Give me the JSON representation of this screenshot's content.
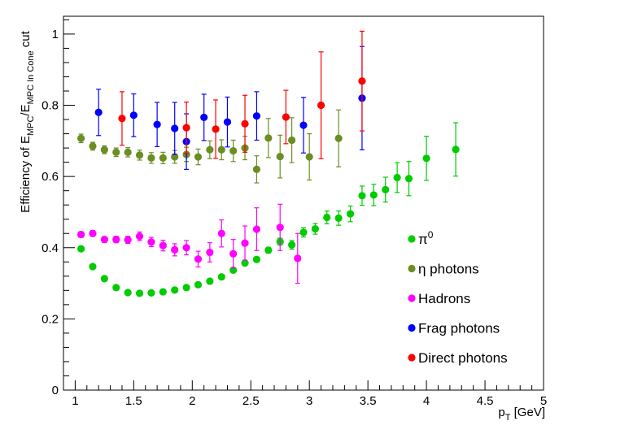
{
  "chart_data": {
    "type": "scatter",
    "title": "",
    "xlabel": "p_T [GeV]",
    "xlabel_main": "p",
    "xlabel_sub": "T",
    "xlabel_unit": " [GeV]",
    "ylabel": "Efficiency of E_MPC/E_MPC In Cone cut",
    "ylabel_prefix": "Efficiency of E",
    "ylabel_sub1": "MPC",
    "ylabel_slash": "/E",
    "ylabel_sub2": "MPC In Cone",
    "ylabel_suffix": " cut",
    "xlim": [
      0.9,
      5.0
    ],
    "ylim": [
      0,
      1.05
    ],
    "x_ticks": [
      "1",
      "1.5",
      "2",
      "2.5",
      "3",
      "3.5",
      "4",
      "4.5",
      "5"
    ],
    "y_ticks": [
      "0",
      "0.2",
      "0.4",
      "0.6",
      "0.8",
      "1"
    ],
    "legend_position": "bottom-right",
    "series": [
      {
        "name": "π⁰",
        "legend_main": "π",
        "legend_sup": "0",
        "color": "#00cc00",
        "points": [
          {
            "x": 1.05,
            "y": 0.397,
            "err": 0.006
          },
          {
            "x": 1.15,
            "y": 0.347,
            "err": 0.005
          },
          {
            "x": 1.25,
            "y": 0.313,
            "err": 0.005
          },
          {
            "x": 1.35,
            "y": 0.288,
            "err": 0.004
          },
          {
            "x": 1.45,
            "y": 0.274,
            "err": 0.004
          },
          {
            "x": 1.55,
            "y": 0.272,
            "err": 0.004
          },
          {
            "x": 1.65,
            "y": 0.273,
            "err": 0.004
          },
          {
            "x": 1.75,
            "y": 0.276,
            "err": 0.004
          },
          {
            "x": 1.85,
            "y": 0.281,
            "err": 0.004
          },
          {
            "x": 1.95,
            "y": 0.288,
            "err": 0.004
          },
          {
            "x": 2.05,
            "y": 0.296,
            "err": 0.005
          },
          {
            "x": 2.15,
            "y": 0.306,
            "err": 0.005
          },
          {
            "x": 2.25,
            "y": 0.318,
            "err": 0.005
          },
          {
            "x": 2.35,
            "y": 0.337,
            "err": 0.006
          },
          {
            "x": 2.45,
            "y": 0.357,
            "err": 0.006
          },
          {
            "x": 2.55,
            "y": 0.367,
            "err": 0.007
          },
          {
            "x": 2.65,
            "y": 0.393,
            "err": 0.008
          },
          {
            "x": 2.75,
            "y": 0.417,
            "err": 0.01
          },
          {
            "x": 2.85,
            "y": 0.408,
            "err": 0.012
          },
          {
            "x": 2.95,
            "y": 0.443,
            "err": 0.013
          },
          {
            "x": 3.05,
            "y": 0.453,
            "err": 0.015
          },
          {
            "x": 3.15,
            "y": 0.485,
            "err": 0.018
          },
          {
            "x": 3.25,
            "y": 0.483,
            "err": 0.02
          },
          {
            "x": 3.35,
            "y": 0.495,
            "err": 0.022
          },
          {
            "x": 3.45,
            "y": 0.546,
            "err": 0.027
          },
          {
            "x": 3.55,
            "y": 0.548,
            "err": 0.03
          },
          {
            "x": 3.65,
            "y": 0.563,
            "err": 0.035
          },
          {
            "x": 3.75,
            "y": 0.597,
            "err": 0.042
          },
          {
            "x": 3.85,
            "y": 0.594,
            "err": 0.048
          },
          {
            "x": 4.0,
            "y": 0.651,
            "err": 0.062
          },
          {
            "x": 4.25,
            "y": 0.676,
            "err": 0.075
          }
        ]
      },
      {
        "name": "η photons",
        "legend_main": "η photons",
        "legend_sup": "",
        "color": "#6b8e23",
        "points": [
          {
            "x": 1.05,
            "y": 0.707,
            "err": 0.012
          },
          {
            "x": 1.15,
            "y": 0.685,
            "err": 0.011
          },
          {
            "x": 1.25,
            "y": 0.675,
            "err": 0.011
          },
          {
            "x": 1.35,
            "y": 0.668,
            "err": 0.012
          },
          {
            "x": 1.45,
            "y": 0.668,
            "err": 0.013
          },
          {
            "x": 1.55,
            "y": 0.66,
            "err": 0.014
          },
          {
            "x": 1.65,
            "y": 0.652,
            "err": 0.015
          },
          {
            "x": 1.75,
            "y": 0.652,
            "err": 0.016
          },
          {
            "x": 1.85,
            "y": 0.655,
            "err": 0.018
          },
          {
            "x": 1.95,
            "y": 0.662,
            "err": 0.02
          },
          {
            "x": 2.05,
            "y": 0.655,
            "err": 0.022
          },
          {
            "x": 2.15,
            "y": 0.675,
            "err": 0.025
          },
          {
            "x": 2.25,
            "y": 0.675,
            "err": 0.028
          },
          {
            "x": 2.35,
            "y": 0.672,
            "err": 0.03
          },
          {
            "x": 2.45,
            "y": 0.68,
            "err": 0.033
          },
          {
            "x": 2.55,
            "y": 0.62,
            "err": 0.038
          },
          {
            "x": 2.65,
            "y": 0.708,
            "err": 0.055
          },
          {
            "x": 2.75,
            "y": 0.656,
            "err": 0.06
          },
          {
            "x": 2.85,
            "y": 0.702,
            "err": 0.063
          },
          {
            "x": 3.0,
            "y": 0.655,
            "err": 0.065
          },
          {
            "x": 3.25,
            "y": 0.707,
            "err": 0.08
          }
        ]
      },
      {
        "name": "Hadrons",
        "legend_main": "Hadrons",
        "legend_sup": "",
        "color": "#ff00ff",
        "points": [
          {
            "x": 1.05,
            "y": 0.437,
            "err": 0.008
          },
          {
            "x": 1.15,
            "y": 0.44,
            "err": 0.008
          },
          {
            "x": 1.25,
            "y": 0.423,
            "err": 0.008
          },
          {
            "x": 1.35,
            "y": 0.423,
            "err": 0.009
          },
          {
            "x": 1.45,
            "y": 0.422,
            "err": 0.01
          },
          {
            "x": 1.55,
            "y": 0.432,
            "err": 0.012
          },
          {
            "x": 1.65,
            "y": 0.416,
            "err": 0.013
          },
          {
            "x": 1.75,
            "y": 0.406,
            "err": 0.015
          },
          {
            "x": 1.85,
            "y": 0.394,
            "err": 0.017
          },
          {
            "x": 1.95,
            "y": 0.4,
            "err": 0.02
          },
          {
            "x": 2.05,
            "y": 0.368,
            "err": 0.022
          },
          {
            "x": 2.15,
            "y": 0.387,
            "err": 0.027
          },
          {
            "x": 2.25,
            "y": 0.44,
            "err": 0.038
          },
          {
            "x": 2.35,
            "y": 0.383,
            "err": 0.04
          },
          {
            "x": 2.45,
            "y": 0.413,
            "err": 0.048
          },
          {
            "x": 2.55,
            "y": 0.452,
            "err": 0.06
          },
          {
            "x": 2.75,
            "y": 0.457,
            "err": 0.065
          },
          {
            "x": 2.9,
            "y": 0.37,
            "err": 0.07
          }
        ]
      },
      {
        "name": "Frag photons",
        "legend_main": "Frag photons",
        "legend_sup": "",
        "color": "#0000ff",
        "points": [
          {
            "x": 1.2,
            "y": 0.78,
            "err": 0.065
          },
          {
            "x": 1.5,
            "y": 0.772,
            "err": 0.06
          },
          {
            "x": 1.7,
            "y": 0.746,
            "err": 0.062
          },
          {
            "x": 1.85,
            "y": 0.735,
            "err": 0.073
          },
          {
            "x": 1.95,
            "y": 0.698,
            "err": 0.078
          },
          {
            "x": 2.1,
            "y": 0.766,
            "err": 0.065
          },
          {
            "x": 2.3,
            "y": 0.753,
            "err": 0.07
          },
          {
            "x": 2.55,
            "y": 0.77,
            "err": 0.068
          },
          {
            "x": 2.95,
            "y": 0.744,
            "err": 0.078
          },
          {
            "x": 3.45,
            "y": 0.82,
            "err": 0.145
          }
        ]
      },
      {
        "name": "Direct photons",
        "legend_main": "Direct photons",
        "legend_sup": "",
        "color": "#ff0000",
        "points": [
          {
            "x": 1.4,
            "y": 0.763,
            "err": 0.075
          },
          {
            "x": 1.95,
            "y": 0.737,
            "err": 0.072
          },
          {
            "x": 2.2,
            "y": 0.733,
            "err": 0.082
          },
          {
            "x": 2.45,
            "y": 0.748,
            "err": 0.08
          },
          {
            "x": 2.8,
            "y": 0.767,
            "err": 0.075
          },
          {
            "x": 3.1,
            "y": 0.8,
            "err": 0.15
          },
          {
            "x": 3.45,
            "y": 0.868,
            "err": 0.14
          }
        ]
      }
    ]
  }
}
